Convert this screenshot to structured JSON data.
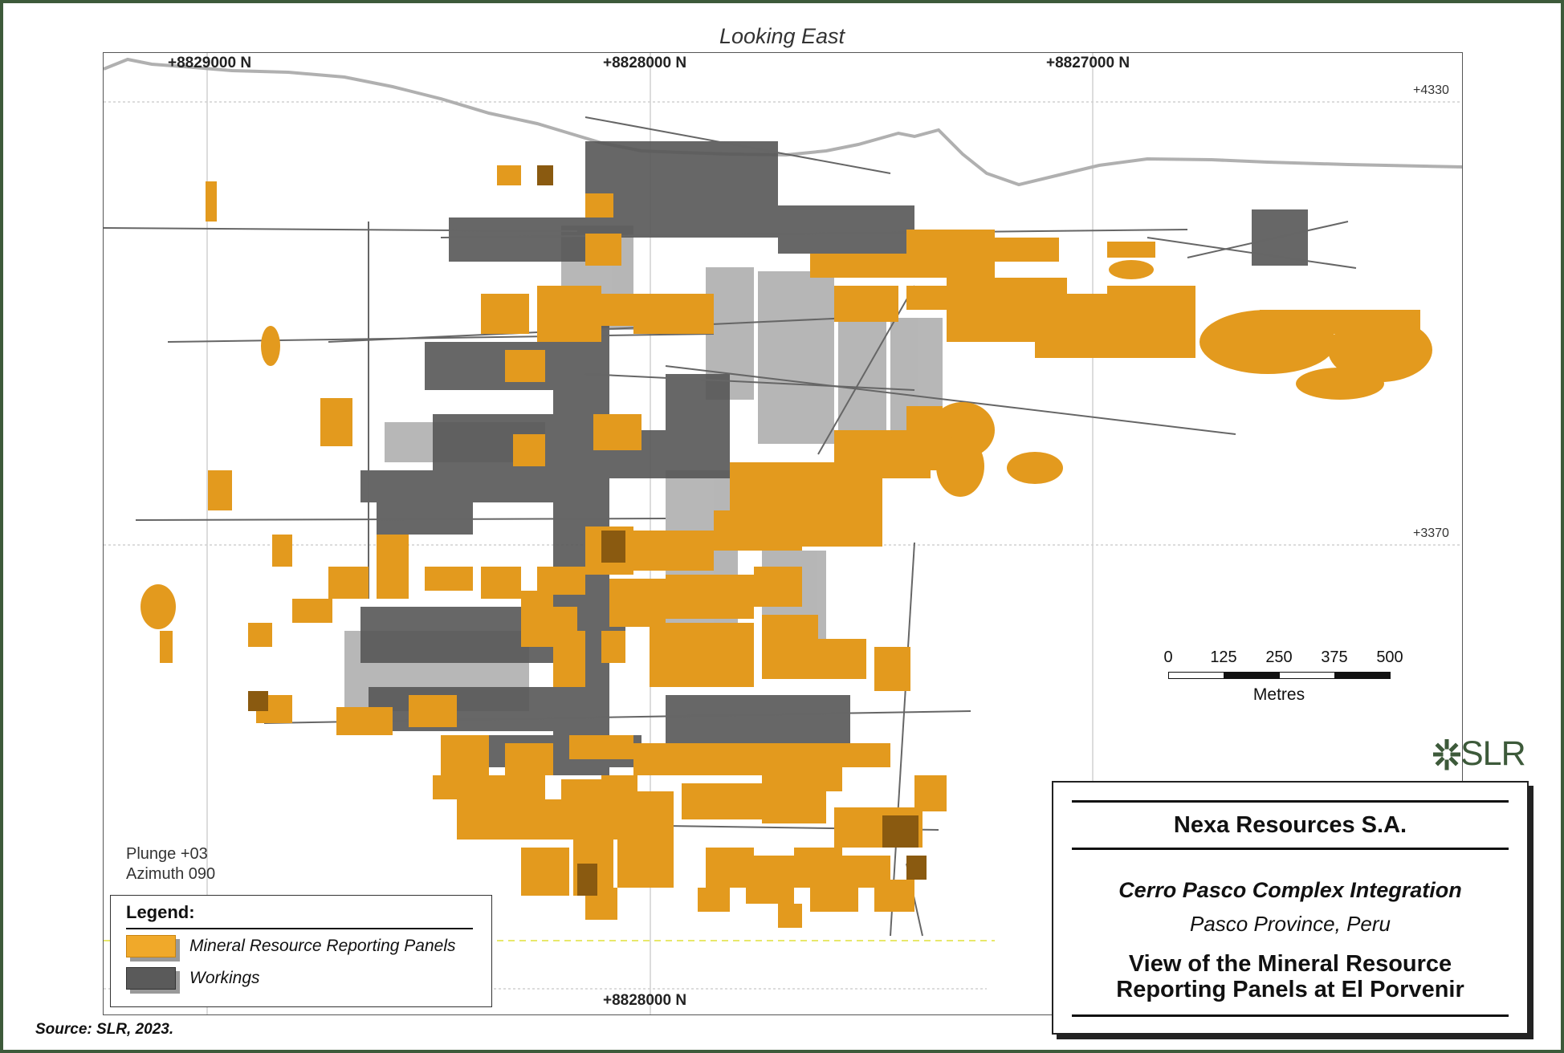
{
  "heading": "Looking East",
  "northings_top": [
    "+8829000 N",
    "+8828000 N",
    "+8827000 N"
  ],
  "northing_bottom": "+8828000 N",
  "elevations": [
    "+4330",
    "+3370"
  ],
  "view": {
    "plunge": "Plunge +03",
    "azimuth": "Azimuth 090"
  },
  "legend": {
    "title": "Legend:",
    "items": [
      {
        "label": "Mineral Resource Reporting Panels",
        "color": "#f0a92a"
      },
      {
        "label": "Workings",
        "color": "#5a5a5a"
      }
    ]
  },
  "scale": {
    "ticks": [
      "0",
      "125",
      "250",
      "375",
      "500"
    ],
    "unit": "Metres"
  },
  "logo": {
    "text": "SLR",
    "icon": "slr-asterisk-icon",
    "color": "#3d5a3a"
  },
  "titlebox": {
    "company": "Nexa Resources S.A.",
    "project": "Cerro Pasco Complex Integration",
    "location": "Pasco Province, Peru",
    "title_line1": "View of the Mineral Resource",
    "title_line2": "Reporting Panels at El Porvenir"
  },
  "source": "Source:  SLR, 2023.",
  "colors": {
    "frame": "#3d5a3a",
    "panels": "#e39a1e",
    "workings": "#555555",
    "stopes": "#a8a8a8",
    "topography": "#b0b0b0"
  }
}
